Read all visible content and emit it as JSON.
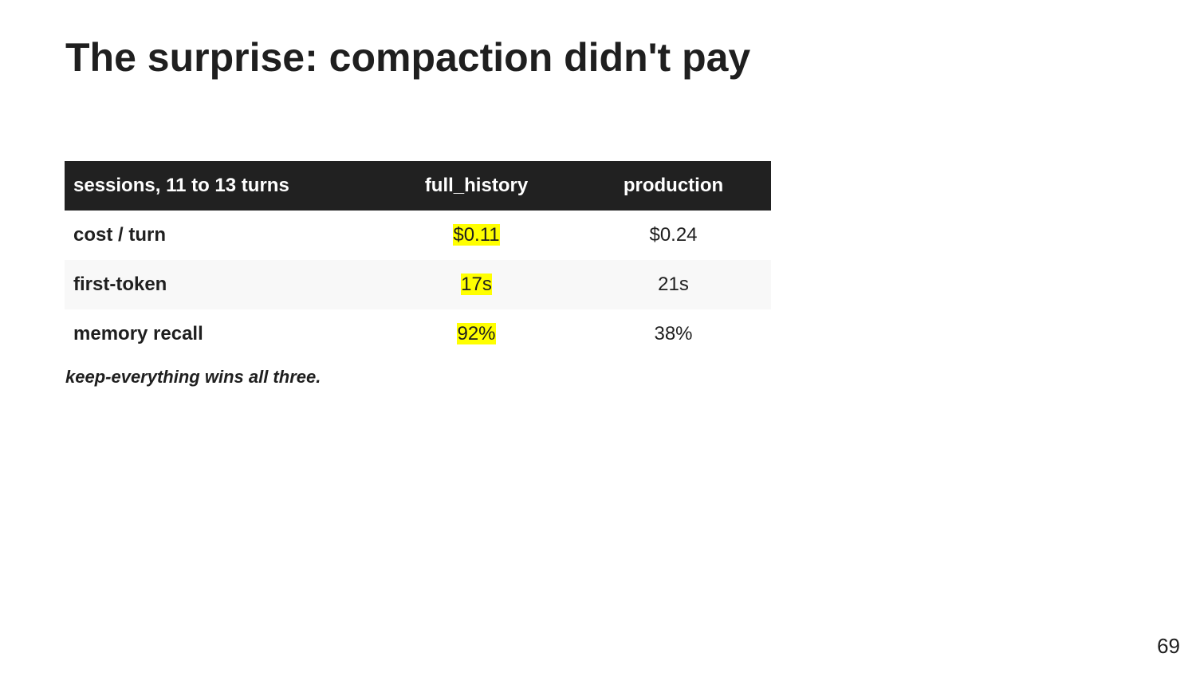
{
  "slide": {
    "title": "The surprise: compaction didn't pay",
    "caption": "keep-everything wins all three.",
    "page_number": "69"
  },
  "table": {
    "headers": [
      "sessions, 11 to 13 turns",
      "full_history",
      "production"
    ],
    "rows": [
      {
        "metric": "cost / turn",
        "full_history": "$0.11",
        "production": "$0.24"
      },
      {
        "metric": "first-token",
        "full_history": "17s",
        "production": "21s"
      },
      {
        "metric": "memory recall",
        "full_history": "92%",
        "production": "38%"
      }
    ],
    "highlight_color": "#ffff00",
    "header_background": "#212121"
  }
}
